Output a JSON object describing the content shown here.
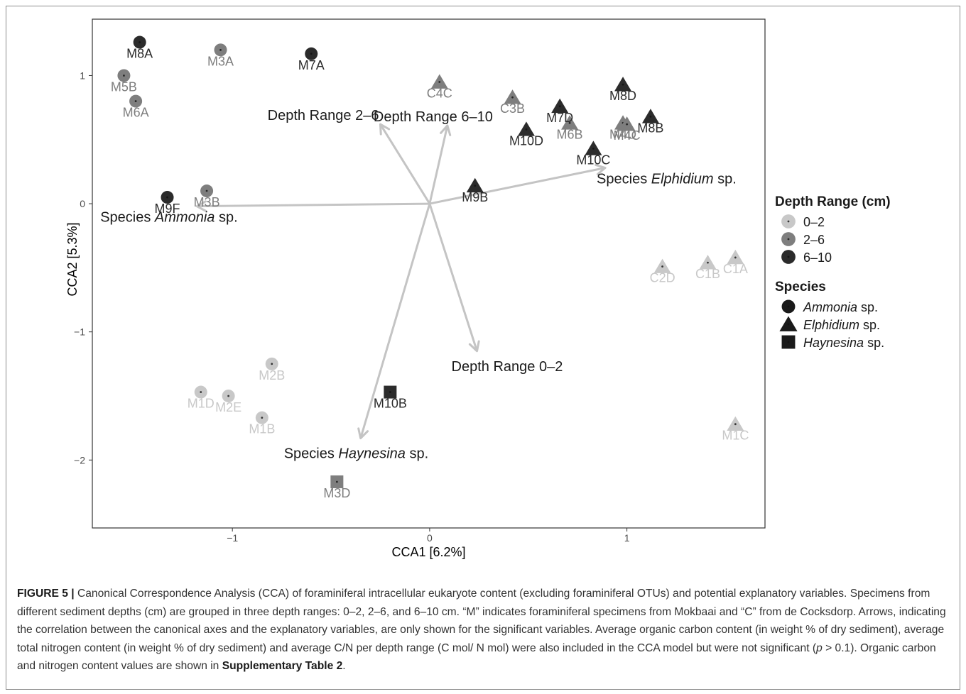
{
  "chart_data": {
    "type": "scatter",
    "xlabel": "CCA1   [6.2%]",
    "ylabel": "CCA2   [5.3%]",
    "xlim": [
      -1.71,
      1.7
    ],
    "ylim": [
      -2.53,
      1.44
    ],
    "x_ticks": [
      -1,
      0,
      1
    ],
    "y_ticks": [
      -2,
      -1,
      0,
      1
    ],
    "x_tick_labels": [
      "−1",
      "0",
      "1"
    ],
    "y_tick_labels": [
      "−2",
      "−1",
      "0",
      "1"
    ],
    "grid": false,
    "legend_position": "right",
    "colors": {
      "0-2": "#c8c8c8",
      "2-6": "#7e7e7e",
      "6-10": "#2b2b2b",
      "arrow": "#c4c4c4"
    },
    "legends": [
      {
        "title": "Depth Range (cm)",
        "kind": "depth",
        "entries": [
          {
            "key": "0-2",
            "label": "0–2"
          },
          {
            "key": "2-6",
            "label": "2–6"
          },
          {
            "key": "6-10",
            "label": "6–10"
          }
        ]
      },
      {
        "title": "Species",
        "kind": "species",
        "entries": [
          {
            "shape": "circle",
            "label": "Ammonia",
            "suffix": " sp."
          },
          {
            "shape": "triangle",
            "label": "Elphidium",
            "suffix": " sp."
          },
          {
            "shape": "square",
            "label": "Haynesina",
            "suffix": " sp."
          }
        ]
      }
    ],
    "points": [
      {
        "label": "M8A",
        "x": -1.47,
        "y": 1.26,
        "depth": "6-10",
        "shape": "circle"
      },
      {
        "label": "M3A",
        "x": -1.06,
        "y": 1.2,
        "depth": "2-6",
        "shape": "circle"
      },
      {
        "label": "M7A",
        "x": -0.6,
        "y": 1.17,
        "depth": "6-10",
        "shape": "circle"
      },
      {
        "label": "M5B",
        "x": -1.55,
        "y": 1.0,
        "depth": "2-6",
        "shape": "circle"
      },
      {
        "label": "M6A",
        "x": -1.49,
        "y": 0.8,
        "depth": "2-6",
        "shape": "circle"
      },
      {
        "label": "M9F",
        "x": -1.33,
        "y": 0.05,
        "depth": "6-10",
        "shape": "circle"
      },
      {
        "label": "M3B",
        "x": -1.13,
        "y": 0.1,
        "depth": "2-6",
        "shape": "circle"
      },
      {
        "label": "M2B",
        "x": -0.8,
        "y": -1.25,
        "depth": "0-2",
        "shape": "circle"
      },
      {
        "label": "M1D",
        "x": -1.16,
        "y": -1.47,
        "depth": "0-2",
        "shape": "circle"
      },
      {
        "label": "M2E",
        "x": -1.02,
        "y": -1.5,
        "depth": "0-2",
        "shape": "circle"
      },
      {
        "label": "M1B",
        "x": -0.85,
        "y": -1.67,
        "depth": "0-2",
        "shape": "circle"
      },
      {
        "label": "C4C",
        "x": 0.05,
        "y": 0.95,
        "depth": "2-6",
        "shape": "triangle"
      },
      {
        "label": "C3B",
        "x": 0.42,
        "y": 0.83,
        "depth": "2-6",
        "shape": "triangle"
      },
      {
        "label": "M7D",
        "x": 0.66,
        "y": 0.76,
        "depth": "6-10",
        "shape": "triangle"
      },
      {
        "label": "M8D",
        "x": 0.98,
        "y": 0.93,
        "depth": "6-10",
        "shape": "triangle"
      },
      {
        "label": "M4D",
        "x": 0.98,
        "y": 0.63,
        "depth": "2-6",
        "shape": "triangle"
      },
      {
        "label": "M8B",
        "x": 1.12,
        "y": 0.68,
        "depth": "6-10",
        "shape": "triangle"
      },
      {
        "label": "M4C",
        "x": 1.0,
        "y": 0.62,
        "depth": "2-6",
        "shape": "triangle"
      },
      {
        "label": "M6B",
        "x": 0.71,
        "y": 0.63,
        "depth": "2-6",
        "shape": "triangle"
      },
      {
        "label": "M10D",
        "x": 0.49,
        "y": 0.58,
        "depth": "6-10",
        "shape": "triangle"
      },
      {
        "label": "M10C",
        "x": 0.83,
        "y": 0.43,
        "depth": "6-10",
        "shape": "triangle"
      },
      {
        "label": "M9B",
        "x": 0.23,
        "y": 0.14,
        "depth": "6-10",
        "shape": "triangle"
      },
      {
        "label": "C2D",
        "x": 1.18,
        "y": -0.49,
        "depth": "0-2",
        "shape": "triangle"
      },
      {
        "label": "C1B",
        "x": 1.41,
        "y": -0.46,
        "depth": "0-2",
        "shape": "triangle"
      },
      {
        "label": "C1A",
        "x": 1.55,
        "y": -0.42,
        "depth": "0-2",
        "shape": "triangle"
      },
      {
        "label": "M1C",
        "x": 1.55,
        "y": -1.72,
        "depth": "0-2",
        "shape": "triangle"
      },
      {
        "label": "M10B",
        "x": -0.2,
        "y": -1.47,
        "depth": "6-10",
        "shape": "square"
      },
      {
        "label": "M3D",
        "x": -0.47,
        "y": -2.17,
        "depth": "2-6",
        "shape": "square"
      }
    ],
    "arrows": [
      {
        "label": "Depth Range 2–6",
        "x": -0.25,
        "y": 0.62
      },
      {
        "label": "Depth Range 6–10",
        "x": 0.09,
        "y": 0.61
      },
      {
        "label": "Species ",
        "italic": "Elphidium",
        "suffix": " sp.",
        "x": 0.89,
        "y": 0.28
      },
      {
        "label": "Species ",
        "italic": "Ammonia",
        "suffix": " sp.",
        "x": -1.18,
        "y": -0.02
      },
      {
        "label": "Depth Range 0–2",
        "x": 0.24,
        "y": -1.15
      },
      {
        "label": "Species ",
        "italic": "Haynesina",
        "suffix": " sp.",
        "x": -0.35,
        "y": -1.83
      }
    ]
  },
  "caption": {
    "lead": "FIGURE 5 |",
    "text": " Canonical Correspondence Analysis (CCA) of foraminiferal intracellular eukaryote content (excluding foraminiferal OTUs) and potential explanatory variables. Specimens from different sediment depths (cm) are grouped in three depth ranges: 0–2, 2–6, and 6–10 cm. “M” indicates foraminiferal specimens from Mokbaai and “C” from de Cocksdorp. Arrows, indicating the correlation between the canonical axes and the explanatory variables, are only shown for the significant variables. Average organic carbon content (in weight % of dry sediment), average total nitrogen content (in weight % of dry sediment) and average C/N per depth range (C mol/ N mol) were also included in the CCA model but were not significant (",
    "p_symbol": "p",
    "after_p": " > 0.1). Organic carbon and nitrogen content values are shown in ",
    "tail": "Supplementary Table 2",
    "end": "."
  }
}
